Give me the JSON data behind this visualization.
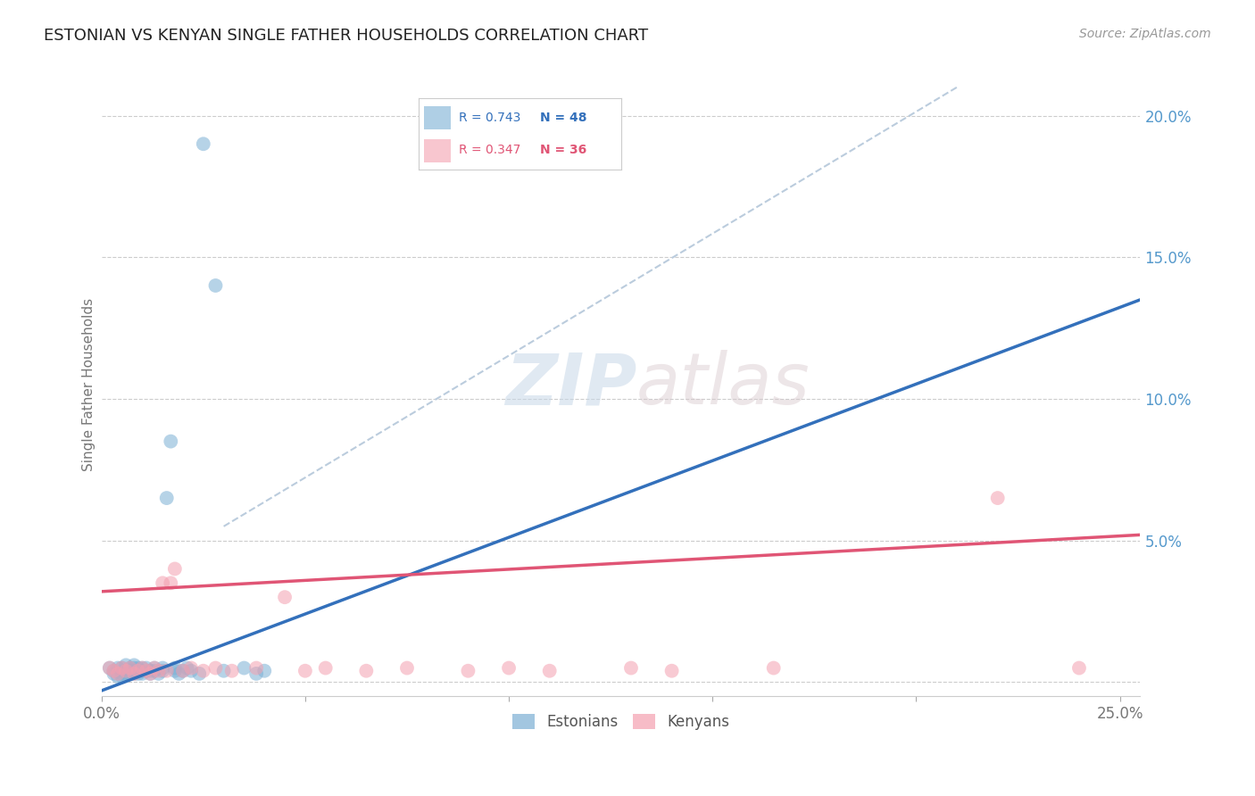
{
  "title": "ESTONIAN VS KENYAN SINGLE FATHER HOUSEHOLDS CORRELATION CHART",
  "source": "Source: ZipAtlas.com",
  "ylabel": "Single Father Households",
  "xlim": [
    0.0,
    0.255
  ],
  "ylim": [
    -0.005,
    0.215
  ],
  "yticks": [
    0.0,
    0.05,
    0.1,
    0.15,
    0.2
  ],
  "ytick_labels": [
    "",
    "5.0%",
    "10.0%",
    "15.0%",
    "20.0%"
  ],
  "xticks": [
    0.0,
    0.05,
    0.1,
    0.15,
    0.2,
    0.25
  ],
  "xtick_labels": [
    "0.0%",
    "",
    "",
    "",
    "",
    "25.0%"
  ],
  "blue_R": 0.743,
  "blue_N": 48,
  "pink_R": 0.347,
  "pink_N": 36,
  "blue_color": "#7BAFD4",
  "pink_color": "#F4A0B0",
  "blue_line_color": "#3370BB",
  "pink_line_color": "#E05575",
  "ref_line_color": "#BBCCDD",
  "watermark_zip": "ZIP",
  "watermark_atlas": "atlas",
  "legend_label_blue": "Estonians",
  "legend_label_pink": "Kenyans",
  "blue_scatter_x": [
    0.002,
    0.003,
    0.003,
    0.004,
    0.004,
    0.005,
    0.005,
    0.005,
    0.006,
    0.006,
    0.006,
    0.007,
    0.007,
    0.007,
    0.008,
    0.008,
    0.008,
    0.008,
    0.009,
    0.009,
    0.009,
    0.01,
    0.01,
    0.01,
    0.011,
    0.011,
    0.012,
    0.012,
    0.013,
    0.013,
    0.014,
    0.015,
    0.015,
    0.016,
    0.017,
    0.018,
    0.018,
    0.019,
    0.02,
    0.021,
    0.022,
    0.024,
    0.025,
    0.028,
    0.03,
    0.035,
    0.038,
    0.04
  ],
  "blue_scatter_y": [
    0.005,
    0.003,
    0.004,
    0.002,
    0.005,
    0.003,
    0.005,
    0.002,
    0.004,
    0.003,
    0.006,
    0.004,
    0.003,
    0.005,
    0.004,
    0.003,
    0.005,
    0.006,
    0.004,
    0.005,
    0.003,
    0.004,
    0.005,
    0.003,
    0.004,
    0.005,
    0.004,
    0.003,
    0.005,
    0.004,
    0.003,
    0.004,
    0.005,
    0.065,
    0.085,
    0.004,
    0.005,
    0.003,
    0.004,
    0.005,
    0.004,
    0.003,
    0.19,
    0.14,
    0.004,
    0.005,
    0.003,
    0.004
  ],
  "pink_scatter_x": [
    0.002,
    0.003,
    0.004,
    0.005,
    0.006,
    0.007,
    0.008,
    0.009,
    0.01,
    0.011,
    0.012,
    0.013,
    0.014,
    0.015,
    0.016,
    0.017,
    0.018,
    0.02,
    0.022,
    0.025,
    0.028,
    0.032,
    0.038,
    0.045,
    0.05,
    0.055,
    0.065,
    0.075,
    0.09,
    0.1,
    0.11,
    0.13,
    0.14,
    0.165,
    0.22,
    0.24
  ],
  "pink_scatter_y": [
    0.005,
    0.004,
    0.003,
    0.005,
    0.004,
    0.005,
    0.003,
    0.004,
    0.005,
    0.004,
    0.003,
    0.005,
    0.004,
    0.035,
    0.004,
    0.035,
    0.04,
    0.004,
    0.005,
    0.004,
    0.005,
    0.004,
    0.005,
    0.03,
    0.004,
    0.005,
    0.004,
    0.005,
    0.004,
    0.005,
    0.004,
    0.005,
    0.004,
    0.005,
    0.065,
    0.005
  ],
  "blue_line_x0": 0.0,
  "blue_line_x1": 0.255,
  "blue_line_y0": -0.003,
  "blue_line_y1": 0.135,
  "pink_line_x0": 0.0,
  "pink_line_x1": 0.255,
  "pink_line_y0": 0.032,
  "pink_line_y1": 0.052,
  "ref_line_x0": 0.03,
  "ref_line_y0": 0.055,
  "ref_line_x1": 0.21,
  "ref_line_y1": 0.21
}
